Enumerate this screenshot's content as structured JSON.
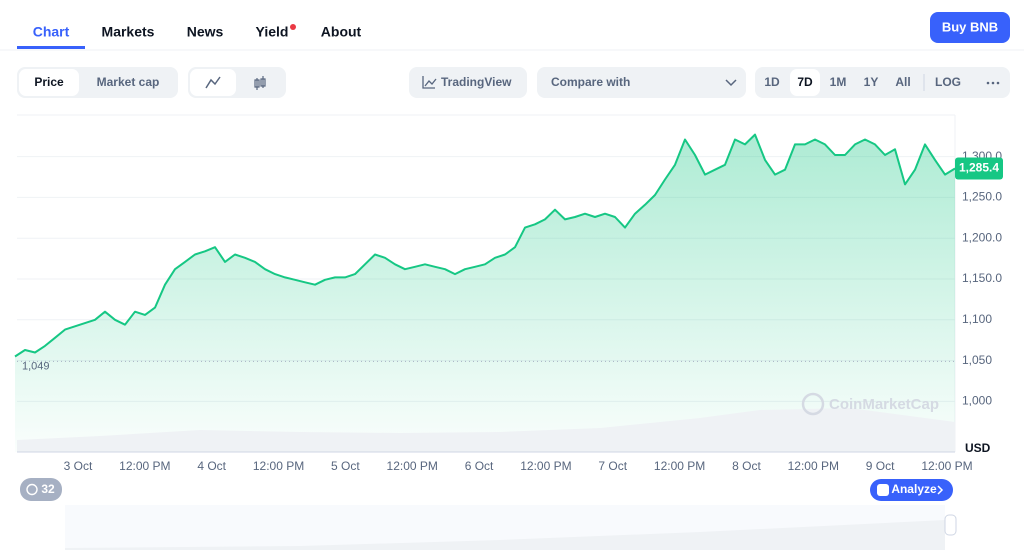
{
  "tabs": [
    "Chart",
    "Markets",
    "News",
    "Yield",
    "About"
  ],
  "buy_button": "Buy BNB",
  "toolbar": {
    "price": "Price",
    "market_cap": "Market cap",
    "tradingview": "TradingView",
    "compare": "Compare with",
    "ranges": [
      "1D",
      "7D",
      "1M",
      "1Y",
      "All",
      "LOG"
    ]
  },
  "chart_data": {
    "type": "line",
    "color": "#16c784",
    "values": [
      1055,
      1063,
      1060,
      1068,
      1078,
      1088,
      1092,
      1096,
      1100,
      1110,
      1100,
      1094,
      1110,
      1106,
      1115,
      1143,
      1162,
      1171,
      1180,
      1184,
      1189,
      1171,
      1180,
      1176,
      1171,
      1162,
      1156,
      1152,
      1149,
      1146,
      1143,
      1149,
      1152,
      1152,
      1156,
      1168,
      1180,
      1176,
      1168,
      1162,
      1165,
      1168,
      1165,
      1162,
      1156,
      1162,
      1165,
      1168,
      1176,
      1180,
      1189,
      1213,
      1217,
      1223,
      1235,
      1223,
      1226,
      1230,
      1226,
      1230,
      1226,
      1213,
      1230,
      1241,
      1253,
      1272,
      1290,
      1321,
      1302,
      1278,
      1284,
      1290,
      1321,
      1315,
      1327,
      1296,
      1278,
      1284,
      1315,
      1315,
      1321,
      1315,
      1302,
      1302,
      1315,
      1321,
      1315,
      1302,
      1309,
      1266,
      1284,
      1315,
      1296,
      1278,
      1285.4
    ],
    "ylim": [
      938,
      1351
    ],
    "yticks": [
      {
        "value": 1000,
        "label": "1,000"
      },
      {
        "value": 1050,
        "label": "1,050"
      },
      {
        "value": 1100,
        "label": "1,100"
      },
      {
        "value": 1150,
        "label": "1,150.0"
      },
      {
        "value": 1200,
        "label": "1,200.0"
      },
      {
        "value": 1250,
        "label": "1,250.0"
      },
      {
        "value": 1300,
        "label": "1,300.0"
      }
    ],
    "xticks": [
      "3 Oct",
      "12:00 PM",
      "4 Oct",
      "12:00 PM",
      "5 Oct",
      "12:00 PM",
      "6 Oct",
      "12:00 PM",
      "7 Oct",
      "12:00 PM",
      "8 Oct",
      "12:00 PM",
      "9 Oct",
      "12:00 PM"
    ],
    "currency": "USD",
    "last_price": {
      "value": 1285.4,
      "label": "1,285.4"
    },
    "baseline": {
      "value": 1049,
      "label": "1,049"
    },
    "watermark": "CoinMarketCap"
  },
  "history_count": 32,
  "analyze": "Analyze"
}
